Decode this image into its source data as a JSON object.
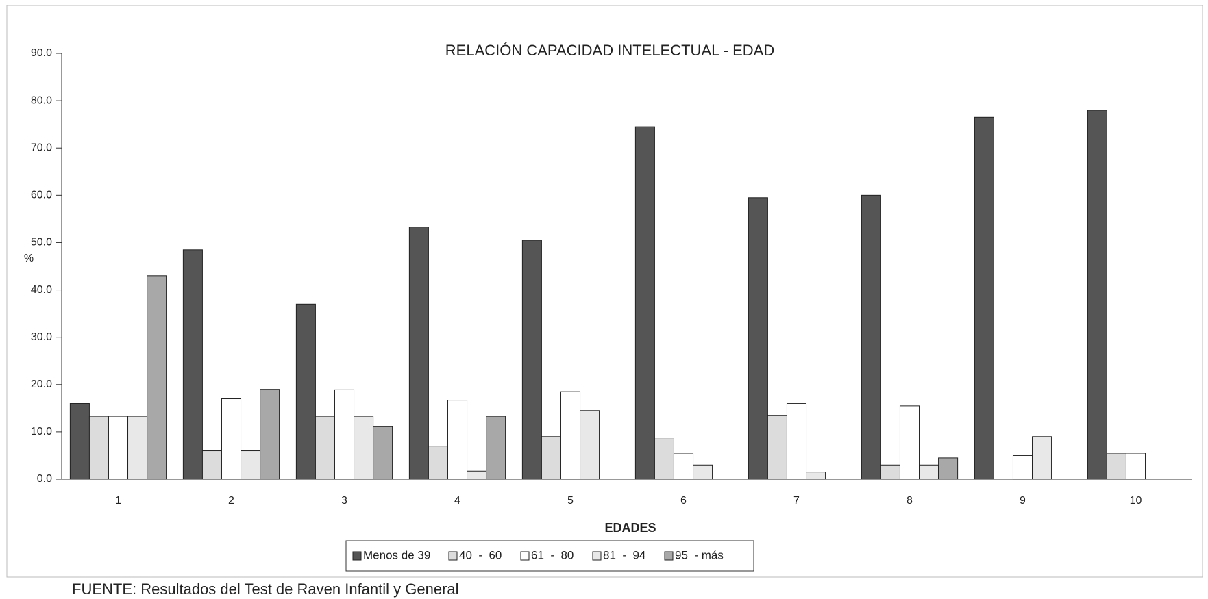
{
  "chart_data": {
    "type": "bar",
    "title": "RELACIÓN CAPACIDAD INTELECTUAL - EDAD",
    "xlabel": "EDADES",
    "ylabel": "%",
    "footer": "FUENTE:   Resultados del Test de Raven Infantil y General",
    "categories": [
      "1",
      "2",
      "3",
      "4",
      "5",
      "6",
      "7",
      "8",
      "9",
      "10"
    ],
    "series": [
      {
        "name": "Menos de 39",
        "color": "#555555",
        "values": [
          16,
          48.5,
          37,
          53.3,
          50.5,
          74.5,
          59.5,
          60,
          76.5,
          78
        ]
      },
      {
        "name": "40  -  60",
        "color": "#dcdcdc",
        "values": [
          13.3,
          6,
          13.3,
          7,
          9,
          8.5,
          13.5,
          3,
          0,
          5.5
        ]
      },
      {
        "name": "61  -  80",
        "color": "#ffffff",
        "values": [
          13.3,
          17,
          18.9,
          16.7,
          18.5,
          5.5,
          16,
          15.5,
          5,
          5.5
        ]
      },
      {
        "name": "81  -  94",
        "color": "#e8e8e8",
        "values": [
          13.3,
          6,
          13.3,
          1.7,
          14.5,
          3,
          1.5,
          3,
          9,
          0
        ]
      },
      {
        "name": "95  - más",
        "color": "#a8a8a8",
        "values": [
          43,
          19,
          11.1,
          13.3,
          0,
          0,
          0,
          4.5,
          0,
          0
        ]
      }
    ],
    "ylim": [
      0,
      90
    ],
    "yticks": [
      {
        "value": 0,
        "label": "0.0"
      },
      {
        "value": 10,
        "label": "10.0"
      },
      {
        "value": 20,
        "label": "20.0"
      },
      {
        "value": 30,
        "label": "30.0"
      },
      {
        "value": 40,
        "label": "40.0"
      },
      {
        "value": 50,
        "label": "50.0"
      },
      {
        "value": 60,
        "label": "60.0"
      },
      {
        "value": 70,
        "label": "70.0"
      },
      {
        "value": 80,
        "label": "80.0"
      },
      {
        "value": 90,
        "label": "90.0"
      }
    ],
    "legend": "bottom"
  }
}
